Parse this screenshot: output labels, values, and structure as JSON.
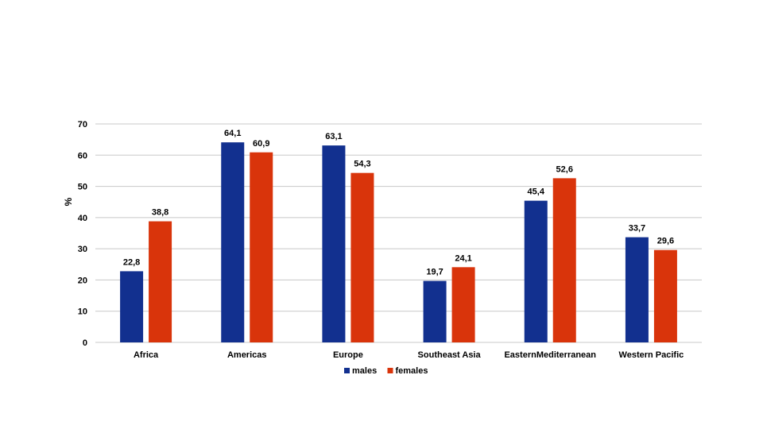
{
  "chart_data": {
    "type": "bar",
    "title": "",
    "xlabel": "",
    "ylabel": "%",
    "ylim": [
      0,
      70
    ],
    "yticks": [
      0,
      10,
      20,
      30,
      40,
      50,
      60,
      70
    ],
    "grid": true,
    "legend_position": "bottom",
    "categories": [
      "Africa",
      "Americas",
      "Europe",
      "Southeast Asia",
      "EasternMediterranean",
      "Western Pacific"
    ],
    "series": [
      {
        "name": "males",
        "color": "#12308f",
        "values": [
          22.8,
          64.1,
          63.1,
          19.7,
          45.4,
          33.7
        ],
        "labels": [
          "22,8",
          "64,1",
          "63,1",
          "19,7",
          "45,4",
          "33,7"
        ]
      },
      {
        "name": "females",
        "color": "#d9340b",
        "values": [
          38.8,
          60.9,
          54.3,
          24.1,
          52.6,
          29.6
        ],
        "labels": [
          "38,8",
          "60,9",
          "54,3",
          "24,1",
          "52,6",
          "29,6"
        ]
      }
    ]
  }
}
